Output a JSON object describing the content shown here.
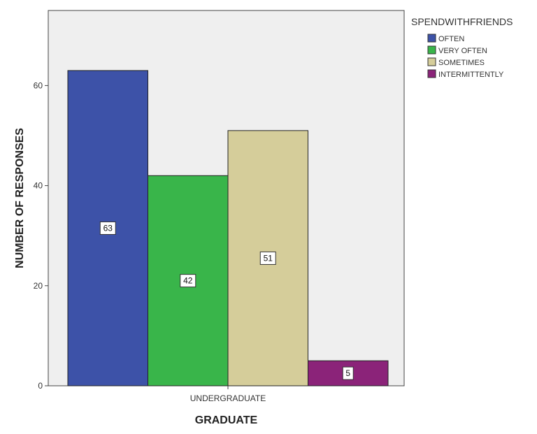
{
  "chart_data": {
    "type": "bar",
    "categories": [
      "UNDERGRADUATE"
    ],
    "xlabel": "GRADUATE",
    "ylabel": "NUMBER OF RESPONSES",
    "ylim": [
      0,
      75
    ],
    "yticks": [
      0,
      20,
      40,
      60
    ],
    "grid": false,
    "legend": {
      "title": "SPENDWITHFRIENDS",
      "placement": "right"
    },
    "series": [
      {
        "name": "OFTEN",
        "values": [
          63
        ],
        "color": "#3d52a8"
      },
      {
        "name": "VERY OFTEN",
        "values": [
          42
        ],
        "color": "#39b54a"
      },
      {
        "name": "SOMETIMES",
        "values": [
          51
        ],
        "color": "#d5cd9a"
      },
      {
        "name": "INTERMITTENTLY",
        "values": [
          5
        ],
        "color": "#8b2379"
      }
    ],
    "data_labels": [
      "63",
      "42",
      "51",
      "5"
    ],
    "plot_background": "#efefef"
  }
}
